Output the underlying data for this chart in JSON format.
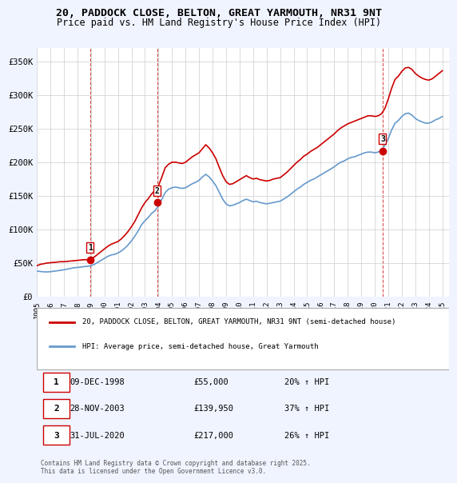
{
  "title": "20, PADDOCK CLOSE, BELTON, GREAT YARMOUTH, NR31 9NT",
  "subtitle": "Price paid vs. HM Land Registry's House Price Index (HPI)",
  "ylabel_ticks": [
    0,
    50000,
    100000,
    150000,
    200000,
    250000,
    300000,
    350000
  ],
  "ylabel_labels": [
    "£0",
    "£50K",
    "£100K",
    "£150K",
    "£200K",
    "£250K",
    "£300K",
    "£350K"
  ],
  "xlim": [
    1995,
    2025.5
  ],
  "ylim": [
    0,
    370000
  ],
  "background_color": "#f0f4ff",
  "plot_bg_color": "#ffffff",
  "grid_color": "#cccccc",
  "red_line_color": "#cc0000",
  "blue_line_color": "#6699cc",
  "sale_marker_color": "#cc0000",
  "vline_color": "#cc0000",
  "sales": [
    {
      "date_num": 1998.94,
      "price": 55000,
      "label": "1"
    },
    {
      "date_num": 2003.91,
      "price": 139950,
      "label": "2"
    },
    {
      "date_num": 2020.58,
      "price": 217000,
      "label": "3"
    }
  ],
  "table_rows": [
    [
      "1",
      "09-DEC-1998",
      "£55,000",
      "20% ↑ HPI"
    ],
    [
      "2",
      "28-NOV-2003",
      "£139,950",
      "37% ↑ HPI"
    ],
    [
      "3",
      "31-JUL-2020",
      "£217,000",
      "26% ↑ HPI"
    ]
  ],
  "legend_labels": [
    "20, PADDOCK CLOSE, BELTON, GREAT YARMOUTH, NR31 9NT (semi-detached house)",
    "HPI: Average price, semi-detached house, Great Yarmouth"
  ],
  "footnote": "Contains HM Land Registry data © Crown copyright and database right 2025.\nThis data is licensed under the Open Government Licence v3.0.",
  "hpi_data": {
    "years": [
      1995.0,
      1995.25,
      1995.5,
      1995.75,
      1996.0,
      1996.25,
      1996.5,
      1996.75,
      1997.0,
      1997.25,
      1997.5,
      1997.75,
      1998.0,
      1998.25,
      1998.5,
      1998.75,
      1999.0,
      1999.25,
      1999.5,
      1999.75,
      2000.0,
      2000.25,
      2000.5,
      2000.75,
      2001.0,
      2001.25,
      2001.5,
      2001.75,
      2002.0,
      2002.25,
      2002.5,
      2002.75,
      2003.0,
      2003.25,
      2003.5,
      2003.75,
      2004.0,
      2004.25,
      2004.5,
      2004.75,
      2005.0,
      2005.25,
      2005.5,
      2005.75,
      2006.0,
      2006.25,
      2006.5,
      2006.75,
      2007.0,
      2007.25,
      2007.5,
      2007.75,
      2008.0,
      2008.25,
      2008.5,
      2008.75,
      2009.0,
      2009.25,
      2009.5,
      2009.75,
      2010.0,
      2010.25,
      2010.5,
      2010.75,
      2011.0,
      2011.25,
      2011.5,
      2011.75,
      2012.0,
      2012.25,
      2012.5,
      2012.75,
      2013.0,
      2013.25,
      2013.5,
      2013.75,
      2014.0,
      2014.25,
      2014.5,
      2014.75,
      2015.0,
      2015.25,
      2015.5,
      2015.75,
      2016.0,
      2016.25,
      2016.5,
      2016.75,
      2017.0,
      2017.25,
      2017.5,
      2017.75,
      2018.0,
      2018.25,
      2018.5,
      2018.75,
      2019.0,
      2019.25,
      2019.5,
      2019.75,
      2020.0,
      2020.25,
      2020.5,
      2020.75,
      2021.0,
      2021.25,
      2021.5,
      2021.75,
      2022.0,
      2022.25,
      2022.5,
      2022.75,
      2023.0,
      2023.25,
      2023.5,
      2023.75,
      2024.0,
      2024.25,
      2024.5,
      2024.75,
      2025.0
    ],
    "values": [
      38000,
      37500,
      37000,
      36800,
      37200,
      37800,
      38500,
      39200,
      40000,
      41000,
      42000,
      43000,
      43500,
      44000,
      44800,
      45200,
      46000,
      48000,
      51000,
      54000,
      57000,
      60000,
      62000,
      63000,
      65000,
      68000,
      72000,
      77000,
      83000,
      90000,
      98000,
      107000,
      113000,
      118000,
      124000,
      128000,
      135000,
      145000,
      155000,
      160000,
      162000,
      163000,
      162000,
      161000,
      162000,
      165000,
      168000,
      170000,
      173000,
      178000,
      182000,
      178000,
      172000,
      165000,
      155000,
      145000,
      138000,
      135000,
      136000,
      138000,
      140000,
      143000,
      145000,
      143000,
      141000,
      142000,
      140000,
      139000,
      138000,
      139000,
      140000,
      141000,
      142000,
      145000,
      148000,
      152000,
      156000,
      160000,
      163000,
      167000,
      170000,
      173000,
      175000,
      178000,
      181000,
      184000,
      187000,
      190000,
      193000,
      197000,
      200000,
      202000,
      205000,
      207000,
      208000,
      210000,
      212000,
      214000,
      215000,
      215000,
      214000,
      215000,
      218000,
      225000,
      235000,
      248000,
      258000,
      262000,
      268000,
      272000,
      273000,
      270000,
      265000,
      262000,
      260000,
      258000,
      258000,
      260000,
      263000,
      265000,
      268000
    ]
  },
  "red_data": {
    "years": [
      1995.0,
      1995.25,
      1995.5,
      1995.75,
      1996.0,
      1996.25,
      1996.5,
      1996.75,
      1997.0,
      1997.25,
      1997.5,
      1997.75,
      1998.0,
      1998.25,
      1998.5,
      1998.75,
      1999.0,
      1999.25,
      1999.5,
      1999.75,
      2000.0,
      2000.25,
      2000.5,
      2000.75,
      2001.0,
      2001.25,
      2001.5,
      2001.75,
      2002.0,
      2002.25,
      2002.5,
      2002.75,
      2003.0,
      2003.25,
      2003.5,
      2003.75,
      2004.0,
      2004.25,
      2004.5,
      2004.75,
      2005.0,
      2005.25,
      2005.5,
      2005.75,
      2006.0,
      2006.25,
      2006.5,
      2006.75,
      2007.0,
      2007.25,
      2007.5,
      2007.75,
      2008.0,
      2008.25,
      2008.5,
      2008.75,
      2009.0,
      2009.25,
      2009.5,
      2009.75,
      2010.0,
      2010.25,
      2010.5,
      2010.75,
      2011.0,
      2011.25,
      2011.5,
      2011.75,
      2012.0,
      2012.25,
      2012.5,
      2012.75,
      2013.0,
      2013.25,
      2013.5,
      2013.75,
      2014.0,
      2014.25,
      2014.5,
      2014.75,
      2015.0,
      2015.25,
      2015.5,
      2015.75,
      2016.0,
      2016.25,
      2016.5,
      2016.75,
      2017.0,
      2017.25,
      2017.5,
      2017.75,
      2018.0,
      2018.25,
      2018.5,
      2018.75,
      2019.0,
      2019.25,
      2019.5,
      2019.75,
      2020.0,
      2020.25,
      2020.5,
      2020.75,
      2021.0,
      2021.25,
      2021.5,
      2021.75,
      2022.0,
      2022.25,
      2022.5,
      2022.75,
      2023.0,
      2023.25,
      2023.5,
      2023.75,
      2024.0,
      2024.25,
      2024.5,
      2024.75,
      2025.0
    ],
    "values": [
      46000,
      48000,
      49000,
      50000,
      50500,
      51000,
      51500,
      52000,
      52000,
      52500,
      53000,
      53500,
      54000,
      54500,
      55000,
      55000,
      56000,
      59000,
      63000,
      67000,
      71000,
      75000,
      78000,
      80000,
      82000,
      86000,
      91000,
      97000,
      104000,
      112000,
      122000,
      132000,
      140000,
      146000,
      153000,
      158000,
      165000,
      178000,
      192000,
      197000,
      200000,
      200000,
      199000,
      198000,
      200000,
      204000,
      208000,
      211000,
      214000,
      220000,
      226000,
      221000,
      214000,
      205000,
      192000,
      180000,
      171000,
      167000,
      168000,
      171000,
      174000,
      177000,
      180000,
      177000,
      175000,
      176000,
      174000,
      173000,
      172000,
      173000,
      175000,
      176000,
      177000,
      181000,
      185000,
      190000,
      195000,
      200000,
      204000,
      209000,
      212000,
      216000,
      219000,
      222000,
      226000,
      230000,
      234000,
      238000,
      242000,
      247000,
      251000,
      254000,
      257000,
      259000,
      261000,
      263000,
      265000,
      267000,
      269000,
      269000,
      268000,
      269000,
      272000,
      280000,
      294000,
      310000,
      323000,
      328000,
      335000,
      340000,
      341000,
      338000,
      332000,
      328000,
      325000,
      323000,
      322000,
      324000,
      328000,
      332000,
      336000
    ]
  }
}
